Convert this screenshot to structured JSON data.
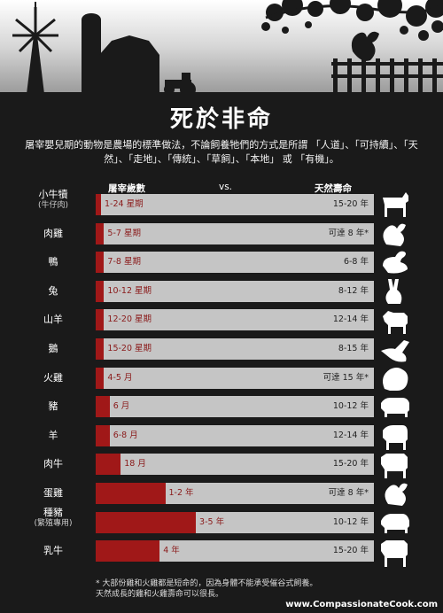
{
  "title": "死於非命",
  "intro": "屠宰嬰兒期的動物是農場的標準做法，不論飼養牠們的方式是所謂 「人道」、「可持續」、「天然」、「走地」、「傳統」、「草飼」、「本地」 或 「有機」。",
  "headers": {
    "left": "屠宰歲數",
    "middle": "vs.",
    "right": "天然壽命"
  },
  "chart_data": {
    "type": "bar",
    "categories": [
      "小牛犢",
      "肉雞",
      "鴨",
      "兔",
      "山羊",
      "鵝",
      "火雞",
      "豬",
      "羊",
      "肉牛",
      "蛋雞",
      "種豬",
      "乳牛"
    ],
    "category_notes": [
      "(牛仔肉)",
      "",
      "",
      "",
      "",
      "",
      "",
      "",
      "",
      "",
      "",
      "(繁殖專用)",
      ""
    ],
    "slaughter_labels": [
      "1-24 星期",
      "5-7 星期",
      "7-8 星期",
      "10-12 星期",
      "12-20 星期",
      "15-20 星期",
      "4-5 月",
      "6 月",
      "6-8 月",
      "18 月",
      "1-2 年",
      "3-5 年",
      "4 年"
    ],
    "natural_labels": [
      "15-20 年",
      "可達 8 年*",
      "6-8 年",
      "8-12 年",
      "12-14 年",
      "8-15 年",
      "可達 15 年*",
      "10-12 年",
      "12-14 年",
      "15-20 年",
      "可達 8 年*",
      "10-12 年",
      "15-20 年"
    ],
    "slaughter_fraction_of_lifespan": [
      0.01,
      0.03,
      0.03,
      0.03,
      0.03,
      0.03,
      0.03,
      0.05,
      0.05,
      0.09,
      0.25,
      0.36,
      0.23
    ]
  },
  "footnote_1": "* 大部份雞和火雞都是短命的，因為身體不能承受催谷式飼養。",
  "footnote_2": "天然成長的雞和火雞壽命可以很長。",
  "url": "www.CompassionateCook.com",
  "colors": {
    "bar_fill": "#a01818",
    "track": "#c5c5c5",
    "background": "#1a1a1a"
  },
  "icons": [
    "calf-icon",
    "chicken-icon",
    "duck-icon",
    "rabbit-icon",
    "goat-icon",
    "goose-icon",
    "turkey-icon",
    "pig-icon",
    "sheep-icon",
    "cow-icon",
    "hen-icon",
    "sow-icon",
    "dairy-cow-icon"
  ]
}
